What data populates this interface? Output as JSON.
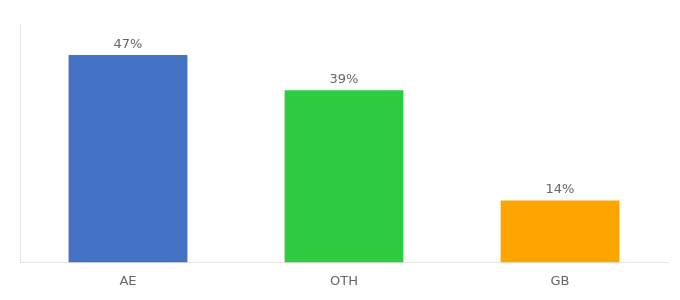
{
  "chart_data": {
    "type": "bar",
    "categories": [
      "AE",
      "OTH",
      "GB"
    ],
    "values": [
      47,
      39,
      14
    ],
    "value_labels": [
      "47%",
      "39%",
      "14%"
    ],
    "colors": [
      "#4472C4",
      "#2ECC40",
      "#FFA500"
    ],
    "ylim": [
      0,
      54
    ],
    "grid": false,
    "data_labels": true,
    "tick_labels": "x"
  }
}
